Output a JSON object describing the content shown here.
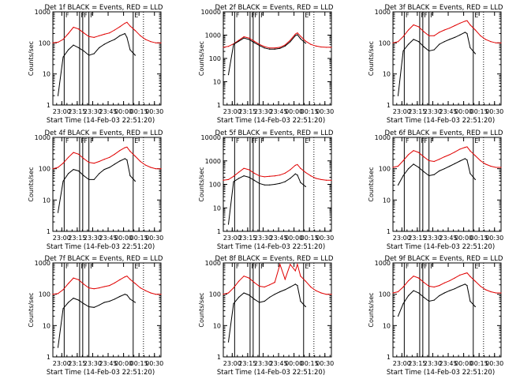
{
  "figure": {
    "ylabel": "Counts/sec",
    "xlabel": "Start Time (14-Feb-03 22:51:20)",
    "x_ticks": [
      "23:00",
      "23:15",
      "23:30",
      "23:45",
      "00:00",
      "00:15",
      "00:30"
    ],
    "y_ticks": [
      "1",
      "10",
      "100",
      "1000"
    ],
    "marker_labels": [
      "F",
      "F",
      "F",
      "F",
      "E"
    ],
    "colors": {
      "events": "#000000",
      "lld": "#e00000"
    }
  },
  "chart_data": [
    {
      "type": "line",
      "title": "Det 1f BLACK = Events, RED = LLD",
      "xlabel": "Start Time (14-Feb-03 22:51:20)",
      "ylabel": "Counts/sec",
      "x_unit": "minutes after 22:51:20",
      "xlim": [
        0,
        105
      ],
      "ylim": [
        1,
        1000
      ],
      "yscale": "log",
      "marker_lines": [
        11,
        26,
        29,
        35,
        78
      ],
      "x": [
        0,
        5,
        10,
        15,
        20,
        25,
        30,
        35,
        40,
        45,
        50,
        55,
        60,
        65,
        70,
        72,
        75,
        80,
        85,
        90,
        95,
        100,
        105
      ],
      "series": [
        {
          "name": "LLD",
          "color": "#e00000",
          "values": [
            100,
            105,
            130,
            200,
            320,
            280,
            210,
            160,
            150,
            170,
            190,
            210,
            260,
            330,
            430,
            460,
            350,
            250,
            170,
            130,
            110,
            100,
            100
          ]
        },
        {
          "name": "Events",
          "color": "#000000",
          "values": [
            null,
            2,
            35,
            60,
            85,
            70,
            55,
            40,
            45,
            70,
            90,
            110,
            130,
            170,
            200,
            150,
            60,
            40,
            null,
            null,
            null,
            null,
            null
          ]
        }
      ]
    },
    {
      "type": "line",
      "title": "Det 2f BLACK = Events, RED = LLD",
      "xlabel": "Start Time (14-Feb-03 22:51:20)",
      "ylabel": "Counts/sec",
      "x_unit": "minutes after 22:51:20",
      "xlim": [
        0,
        105
      ],
      "ylim": [
        1,
        10000
      ],
      "yscale": "log",
      "marker_lines": [
        11,
        26,
        29,
        35,
        78
      ],
      "x": [
        0,
        5,
        10,
        15,
        20,
        25,
        30,
        35,
        40,
        45,
        50,
        55,
        60,
        65,
        70,
        72,
        75,
        80,
        85,
        90,
        95,
        100,
        105
      ],
      "series": [
        {
          "name": "LLD",
          "color": "#e00000",
          "values": [
            300,
            330,
            420,
            600,
            850,
            750,
            550,
            400,
            320,
            280,
            280,
            300,
            380,
            600,
            1100,
            1250,
            900,
            550,
            400,
            340,
            310,
            300,
            300
          ]
        },
        {
          "name": "Events",
          "color": "#000000",
          "values": [
            null,
            20,
            400,
            550,
            750,
            650,
            480,
            360,
            280,
            250,
            250,
            270,
            340,
            520,
            950,
            1050,
            700,
            450,
            null,
            null,
            null,
            null,
            null
          ]
        }
      ]
    },
    {
      "type": "line",
      "title": "Det 3f BLACK = Events, RED = LLD",
      "xlabel": "Start Time (14-Feb-03 22:51:20)",
      "ylabel": "Counts/sec",
      "x_unit": "minutes after 22:51:20",
      "xlim": [
        0,
        105
      ],
      "ylim": [
        1,
        1000
      ],
      "yscale": "log",
      "marker_lines": [
        11,
        26,
        29,
        35,
        78
      ],
      "x": [
        0,
        5,
        10,
        15,
        20,
        25,
        30,
        35,
        40,
        45,
        50,
        55,
        60,
        65,
        70,
        72,
        75,
        80,
        85,
        90,
        95,
        100,
        105
      ],
      "series": [
        {
          "name": "LLD",
          "color": "#e00000",
          "values": [
            100,
            110,
            160,
            260,
            380,
            330,
            230,
            170,
            170,
            220,
            260,
            300,
            360,
            430,
            500,
            520,
            380,
            260,
            170,
            130,
            110,
            100,
            100
          ]
        },
        {
          "name": "Events",
          "color": "#000000",
          "values": [
            null,
            2,
            55,
            90,
            130,
            110,
            75,
            55,
            60,
            90,
            110,
            130,
            150,
            180,
            220,
            200,
            70,
            45,
            null,
            null,
            null,
            null,
            null
          ]
        }
      ]
    },
    {
      "type": "line",
      "title": "Det 4f BLACK = Events, RED = LLD",
      "xlabel": "Start Time (14-Feb-03 22:51:20)",
      "ylabel": "Counts/sec",
      "x_unit": "minutes after 22:51:20",
      "xlim": [
        0,
        105
      ],
      "ylim": [
        1,
        1000
      ],
      "yscale": "log",
      "marker_lines": [
        11,
        26,
        29,
        35,
        78
      ],
      "x": [
        0,
        5,
        10,
        15,
        20,
        25,
        30,
        35,
        40,
        45,
        50,
        55,
        60,
        65,
        70,
        72,
        75,
        80,
        85,
        90,
        95,
        100,
        105
      ],
      "series": [
        {
          "name": "LLD",
          "color": "#e00000",
          "values": [
            100,
            110,
            150,
            230,
            330,
            290,
            210,
            160,
            150,
            170,
            200,
            230,
            290,
            380,
            470,
            490,
            360,
            250,
            170,
            130,
            110,
            100,
            100
          ]
        },
        {
          "name": "Events",
          "color": "#000000",
          "values": [
            null,
            4,
            40,
            70,
            95,
            85,
            60,
            45,
            45,
            70,
            95,
            110,
            140,
            175,
            210,
            190,
            60,
            40,
            null,
            null,
            null,
            null,
            null
          ]
        }
      ]
    },
    {
      "type": "line",
      "title": "Det 5f BLACK = Events, RED = LLD",
      "xlabel": "Start Time (14-Feb-03 22:51:20)",
      "ylabel": "Counts/sec",
      "x_unit": "minutes after 22:51:20",
      "xlim": [
        0,
        105
      ],
      "ylim": [
        1,
        10000
      ],
      "yscale": "log",
      "marker_lines": [
        11,
        26,
        29,
        35,
        78
      ],
      "x": [
        0,
        5,
        10,
        15,
        20,
        25,
        30,
        35,
        40,
        45,
        50,
        55,
        60,
        65,
        70,
        72,
        75,
        80,
        85,
        90,
        95,
        100,
        105
      ],
      "series": [
        {
          "name": "LLD",
          "color": "#e00000",
          "values": [
            150,
            160,
            220,
            330,
            480,
            420,
            300,
            230,
            210,
            220,
            230,
            250,
            300,
            420,
            650,
            700,
            480,
            320,
            230,
            180,
            160,
            150,
            150
          ]
        },
        {
          "name": "Events",
          "color": "#000000",
          "values": [
            null,
            2,
            130,
            180,
            230,
            200,
            150,
            110,
            95,
            95,
            100,
            110,
            130,
            180,
            280,
            250,
            120,
            80,
            null,
            null,
            null,
            null,
            null
          ]
        }
      ]
    },
    {
      "type": "line",
      "title": "Det 6f BLACK = Events, RED = LLD",
      "xlabel": "Start Time (14-Feb-03 22:51:20)",
      "ylabel": "Counts/sec",
      "x_unit": "minutes after 22:51:20",
      "xlim": [
        0,
        105
      ],
      "ylim": [
        1,
        1000
      ],
      "yscale": "log",
      "marker_lines": [
        11,
        26,
        29,
        35,
        78
      ],
      "x": [
        0,
        5,
        10,
        15,
        20,
        25,
        30,
        35,
        40,
        45,
        50,
        55,
        60,
        65,
        70,
        72,
        75,
        80,
        85,
        90,
        95,
        100,
        105
      ],
      "series": [
        {
          "name": "LLD",
          "color": "#e00000",
          "values": [
            110,
            120,
            180,
            280,
            380,
            330,
            240,
            180,
            170,
            200,
            240,
            280,
            340,
            420,
            480,
            500,
            370,
            260,
            180,
            140,
            120,
            110,
            110
          ]
        },
        {
          "name": "Events",
          "color": "#000000",
          "values": [
            null,
            30,
            60,
            100,
            140,
            110,
            80,
            60,
            65,
            85,
            100,
            120,
            145,
            175,
            210,
            190,
            70,
            45,
            null,
            null,
            null,
            null,
            null
          ]
        }
      ]
    },
    {
      "type": "line",
      "title": "Det 7f BLACK = Events, RED = LLD",
      "xlabel": "Start Time (14-Feb-03 22:51:20)",
      "ylabel": "Counts/sec",
      "x_unit": "minutes after 22:51:20",
      "xlim": [
        0,
        105
      ],
      "ylim": [
        1,
        1000
      ],
      "yscale": "log",
      "marker_lines": [
        11,
        26,
        29,
        35,
        78
      ],
      "x": [
        0,
        5,
        10,
        15,
        20,
        25,
        30,
        35,
        40,
        45,
        50,
        55,
        60,
        65,
        70,
        72,
        75,
        80,
        85,
        90,
        95,
        100,
        105
      ],
      "series": [
        {
          "name": "LLD",
          "color": "#e00000",
          "values": [
            100,
            105,
            140,
            220,
            330,
            290,
            210,
            160,
            150,
            160,
            175,
            190,
            230,
            290,
            360,
            380,
            300,
            220,
            160,
            130,
            110,
            100,
            100
          ]
        },
        {
          "name": "Events",
          "color": "#000000",
          "values": [
            null,
            2,
            35,
            55,
            75,
            65,
            50,
            40,
            38,
            45,
            55,
            60,
            70,
            85,
            100,
            95,
            70,
            55,
            null,
            null,
            null,
            null,
            null
          ]
        }
      ]
    },
    {
      "type": "line",
      "title": "Det 8f BLACK = Events, RED = LLD",
      "xlabel": "Start Time (14-Feb-03 22:51:20)",
      "ylabel": "Counts/sec",
      "x_unit": "minutes after 22:51:20",
      "xlim": [
        0,
        105
      ],
      "ylim": [
        1,
        1000
      ],
      "yscale": "log",
      "marker_lines": [
        11,
        26,
        29,
        35,
        78
      ],
      "x": [
        0,
        5,
        10,
        15,
        20,
        25,
        30,
        35,
        40,
        45,
        50,
        55,
        60,
        65,
        70,
        72,
        75,
        80,
        85,
        90,
        95,
        100,
        105
      ],
      "series": [
        {
          "name": "LLD",
          "color": "#e00000",
          "values": [
            100,
            110,
            160,
            260,
            380,
            330,
            240,
            180,
            170,
            200,
            240,
            900,
            300,
            900,
            560,
            900,
            380,
            260,
            170,
            130,
            110,
            100,
            100
          ]
        },
        {
          "name": "Events",
          "color": "#000000",
          "values": [
            null,
            3,
            50,
            80,
            110,
            95,
            70,
            55,
            60,
            80,
            100,
            120,
            140,
            170,
            210,
            190,
            60,
            40,
            null,
            null,
            null,
            null,
            null
          ]
        }
      ]
    },
    {
      "type": "line",
      "title": "Det 9f BLACK = Events, RED = LLD",
      "xlabel": "Start Time (14-Feb-03 22:51:20)",
      "ylabel": "Counts/sec",
      "x_unit": "minutes after 22:51:20",
      "xlim": [
        0,
        105
      ],
      "ylim": [
        1,
        1000
      ],
      "yscale": "log",
      "marker_lines": [
        11,
        26,
        29,
        35,
        78
      ],
      "x": [
        0,
        5,
        10,
        15,
        20,
        25,
        30,
        35,
        40,
        45,
        50,
        55,
        60,
        65,
        70,
        72,
        75,
        80,
        85,
        90,
        95,
        100,
        105
      ],
      "series": [
        {
          "name": "LLD",
          "color": "#e00000",
          "values": [
            110,
            120,
            170,
            270,
            380,
            330,
            240,
            180,
            170,
            190,
            230,
            270,
            330,
            410,
            460,
            480,
            370,
            260,
            180,
            140,
            120,
            110,
            110
          ]
        },
        {
          "name": "Events",
          "color": "#000000",
          "values": [
            null,
            20,
            50,
            90,
            130,
            110,
            80,
            60,
            65,
            90,
            110,
            130,
            150,
            180,
            210,
            190,
            60,
            40,
            null,
            null,
            null,
            null,
            null
          ]
        }
      ]
    }
  ]
}
